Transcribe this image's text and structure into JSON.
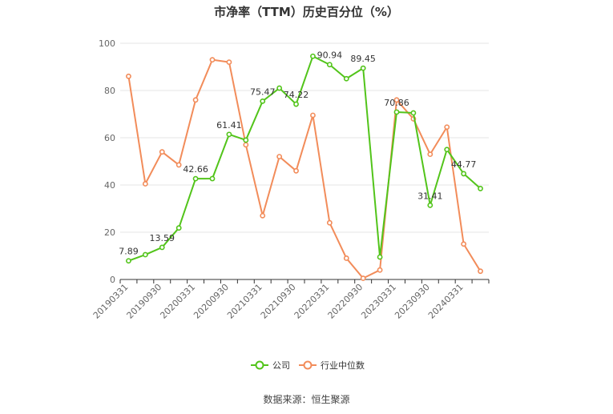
{
  "chart_data": {
    "type": "line",
    "title": "市净率（TTM）历史百分位（%）",
    "ylim": [
      0,
      100
    ],
    "yticks": [
      0,
      20,
      40,
      60,
      80,
      100
    ],
    "x_tick_labels": [
      "20190331",
      "20190930",
      "20200331",
      "20200930",
      "20210331",
      "20210930",
      "20220331",
      "20220930",
      "20230331",
      "20230930",
      "20240331"
    ],
    "x": [
      "20190331",
      "20190630",
      "20190930",
      "20191231",
      "20200331",
      "20200630",
      "20200930",
      "20201231",
      "20210331",
      "20210630",
      "20210930",
      "20211231",
      "20220331",
      "20220630",
      "20220930",
      "20221231",
      "20230331",
      "20230630",
      "20230930",
      "20231231",
      "20240331",
      "20240630"
    ],
    "series": [
      {
        "name": "公司",
        "color": "#52c41a",
        "values": [
          7.89,
          10.5,
          13.59,
          21.8,
          42.66,
          42.7,
          61.41,
          59.0,
          75.47,
          81.0,
          74.22,
          94.5,
          90.94,
          85.0,
          89.45,
          9.5,
          70.86,
          70.5,
          31.41,
          55.0,
          44.77,
          38.5
        ],
        "labels": {
          "0": "7.89",
          "2": "13.59",
          "4": "42.66",
          "6": "61.41",
          "8": "75.47",
          "10": "74.22",
          "12": "90.94",
          "14": "89.45",
          "16": "70.86",
          "18": "31.41",
          "20": "44.77"
        }
      },
      {
        "name": "行业中位数",
        "color": "#f28c5a",
        "values": [
          86.0,
          40.5,
          54.0,
          48.5,
          76.0,
          93.0,
          92.0,
          57.0,
          27.0,
          52.0,
          46.0,
          69.5,
          24.0,
          9.0,
          0.5,
          4.0,
          76.0,
          68.0,
          53.0,
          64.5,
          15.0,
          3.5
        ]
      }
    ],
    "legend_position": "bottom",
    "grid": true
  },
  "footer": {
    "source": "数据来源：恒生聚源"
  }
}
